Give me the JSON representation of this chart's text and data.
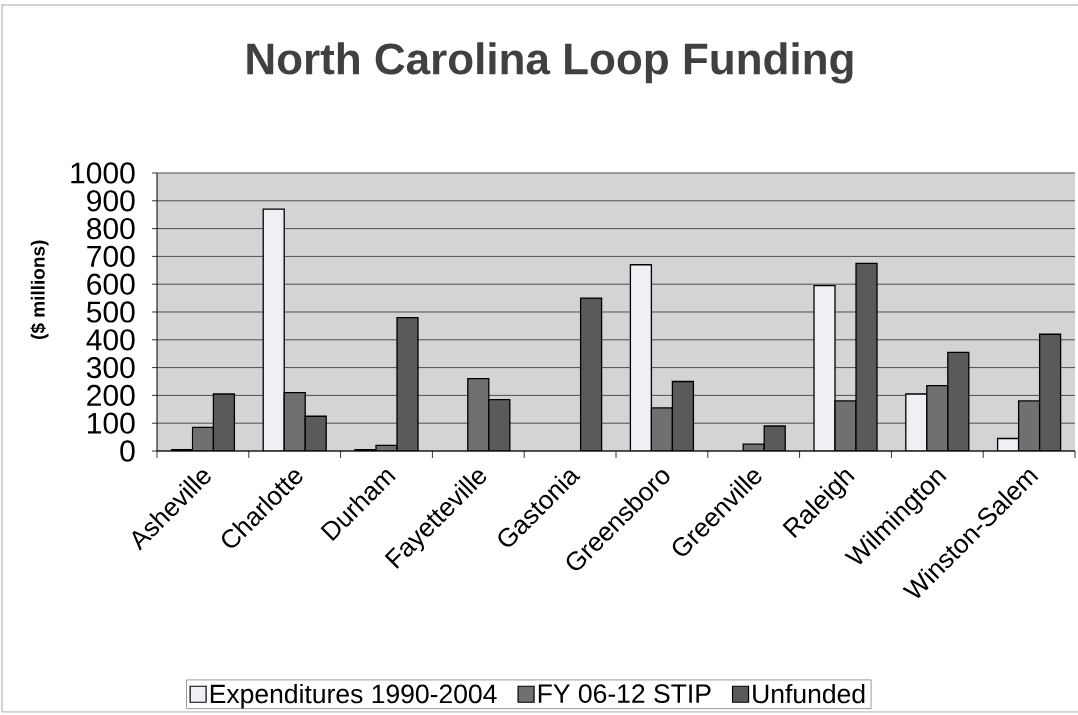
{
  "chart_data": {
    "type": "bar",
    "title": "North Carolina Loop Funding",
    "ylabel": "($ millions)",
    "categories": [
      "Asheville",
      "Charlotte",
      "Durham",
      "Fayetteville",
      "Gastonia",
      "Greensboro",
      "Greenville",
      "Raleigh",
      "Wilmington",
      "Winston-Salem"
    ],
    "series": [
      {
        "name": "Expenditures 1990-2004",
        "color": "#eef0f6",
        "values": [
          5,
          870,
          5,
          null,
          null,
          670,
          null,
          595,
          205,
          45
        ]
      },
      {
        "name": "FY 06-12 STIP",
        "color": "#707070",
        "values": [
          85,
          210,
          20,
          260,
          null,
          155,
          25,
          180,
          235,
          180
        ]
      },
      {
        "name": "Unfunded",
        "color": "#5a5a5a",
        "values": [
          205,
          125,
          480,
          185,
          550,
          250,
          90,
          675,
          355,
          420
        ]
      }
    ],
    "ylim": [
      0,
      1000
    ],
    "yticks": [
      0,
      100,
      200,
      300,
      400,
      500,
      600,
      700,
      800,
      900,
      1000
    ],
    "grid": "y",
    "legend": "bottom"
  }
}
